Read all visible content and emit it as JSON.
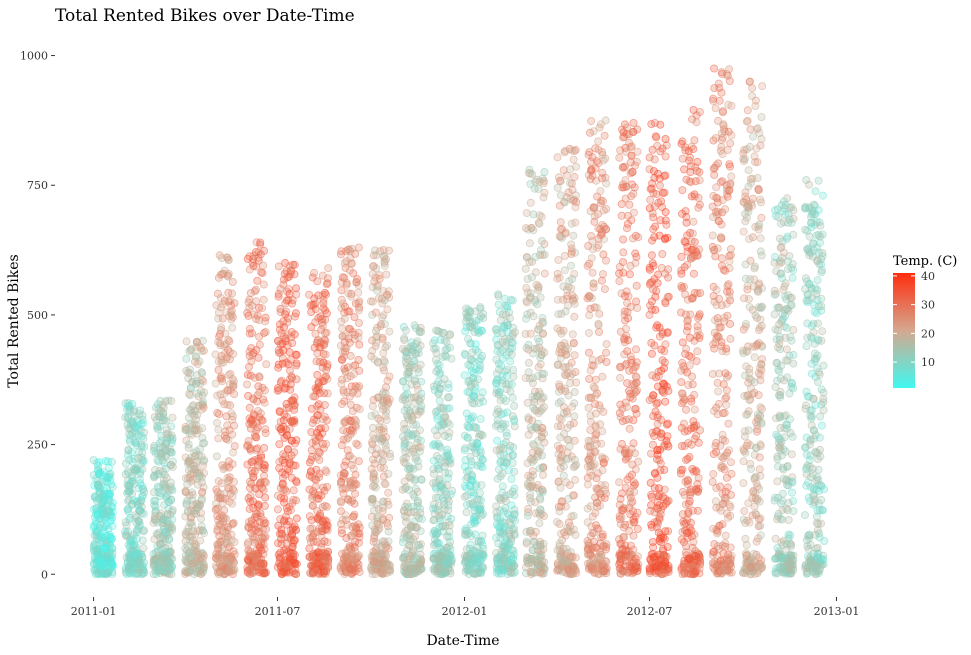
{
  "chart_data": {
    "type": "scatter",
    "title": "Total Rented Bikes over Date-Time",
    "xlabel": "Date-Time",
    "ylabel": "Total Rented Bikes",
    "x_range": [
      "2011-01-01",
      "2012-12-31"
    ],
    "x_ticks": [
      "2011-01",
      "2011-07",
      "2012-01",
      "2012-07",
      "2013-01"
    ],
    "ylim": [
      0,
      1000
    ],
    "y_ticks": [
      0,
      250,
      500,
      750,
      1000
    ],
    "grid": false,
    "legend": {
      "title": "Temp. (C)",
      "placement": "right",
      "ticks": [
        10,
        20,
        30,
        40
      ],
      "low_color": "#40f8f0",
      "high_color": "#ff2d0f",
      "mid_color": "#d4a88f",
      "range": [
        1,
        41
      ]
    },
    "monthly_profile": [
      {
        "month": "2011-01",
        "max_count": 220,
        "typical_temp": 6
      },
      {
        "month": "2011-02",
        "max_count": 330,
        "typical_temp": 10
      },
      {
        "month": "2011-03",
        "max_count": 335,
        "typical_temp": 13
      },
      {
        "month": "2011-04",
        "max_count": 450,
        "typical_temp": 18
      },
      {
        "month": "2011-05",
        "max_count": 615,
        "typical_temp": 24
      },
      {
        "month": "2011-06",
        "max_count": 640,
        "typical_temp": 30
      },
      {
        "month": "2011-07",
        "max_count": 600,
        "typical_temp": 33
      },
      {
        "month": "2011-08",
        "max_count": 590,
        "typical_temp": 31
      },
      {
        "month": "2011-09",
        "max_count": 630,
        "typical_temp": 27
      },
      {
        "month": "2011-10",
        "max_count": 625,
        "typical_temp": 21
      },
      {
        "month": "2011-11",
        "max_count": 480,
        "typical_temp": 15
      },
      {
        "month": "2011-12",
        "max_count": 470,
        "typical_temp": 12
      },
      {
        "month": "2012-01",
        "max_count": 515,
        "typical_temp": 10
      },
      {
        "month": "2012-02",
        "max_count": 540,
        "typical_temp": 11
      },
      {
        "month": "2012-03",
        "max_count": 780,
        "typical_temp": 18
      },
      {
        "month": "2012-04",
        "max_count": 820,
        "typical_temp": 21
      },
      {
        "month": "2012-05",
        "max_count": 875,
        "typical_temp": 25
      },
      {
        "month": "2012-06",
        "max_count": 870,
        "typical_temp": 29
      },
      {
        "month": "2012-07",
        "max_count": 870,
        "typical_temp": 34
      },
      {
        "month": "2012-08",
        "max_count": 895,
        "typical_temp": 31
      },
      {
        "month": "2012-09",
        "max_count": 975,
        "typical_temp": 27
      },
      {
        "month": "2012-10",
        "max_count": 950,
        "typical_temp": 21
      },
      {
        "month": "2012-11",
        "max_count": 725,
        "typical_temp": 14
      },
      {
        "month": "2012-12",
        "max_count": 760,
        "typical_temp": 12
      }
    ]
  }
}
